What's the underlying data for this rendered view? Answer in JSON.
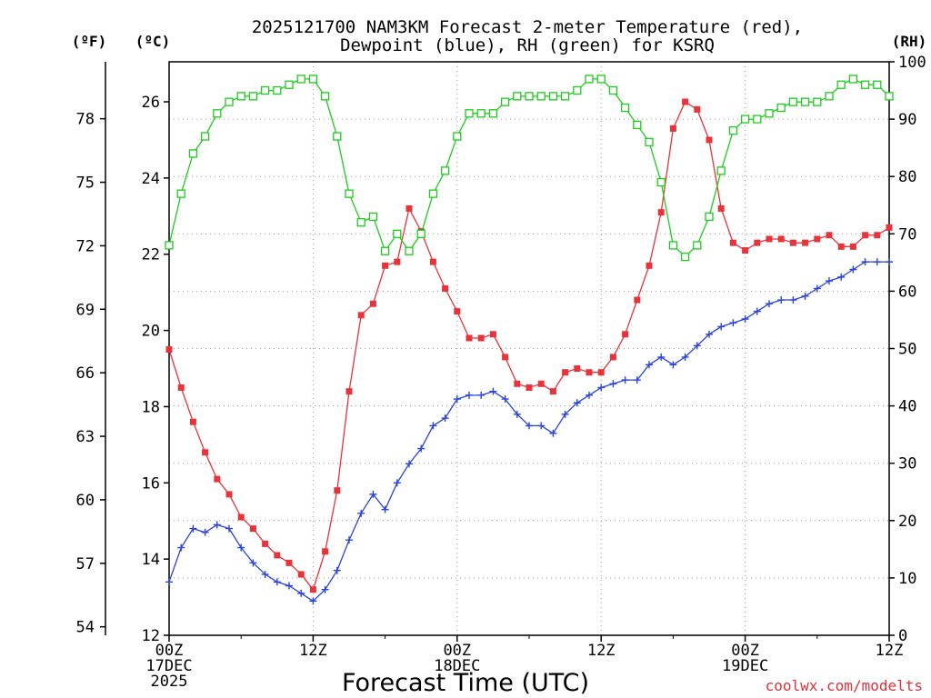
{
  "chart_data": {
    "type": "line",
    "title_line1": "2025121700 NAM3KM Forecast 2-meter Temperature (red),",
    "title_line2": "Dewpoint (blue), RH (green) for KSRQ",
    "xlabel": "Forecast Time (UTC)",
    "credit": "coolwx.com/modelts",
    "units": {
      "fahrenheit": "(ºF)",
      "celsius": "(ºC)",
      "rh": "(RH)"
    },
    "x_unit": "forecast hour",
    "xlim": [
      0,
      60
    ],
    "x_ticks": [
      {
        "hour": 0,
        "l1": "00Z",
        "l2": "17DEC",
        "l3": "2025"
      },
      {
        "hour": 12,
        "l1": "12Z",
        "l2": "",
        "l3": ""
      },
      {
        "hour": 24,
        "l1": "00Z",
        "l2": "18DEC",
        "l3": ""
      },
      {
        "hour": 36,
        "l1": "12Z",
        "l2": "",
        "l3": ""
      },
      {
        "hour": 48,
        "l1": "00Z",
        "l2": "19DEC",
        "l3": ""
      },
      {
        "hour": 60,
        "l1": "12Z",
        "l2": "",
        "l3": ""
      }
    ],
    "celsius_axis": {
      "ylim": [
        12,
        27.05
      ],
      "ticks": [
        12,
        14,
        16,
        18,
        20,
        22,
        24,
        26
      ]
    },
    "fahrenheit_axis": {
      "ticks": [
        54,
        57,
        60,
        63,
        66,
        69,
        72,
        75,
        78
      ]
    },
    "rh_axis": {
      "ylim": [
        0,
        100
      ],
      "ticks": [
        0,
        10,
        20,
        30,
        40,
        50,
        60,
        70,
        80,
        90,
        100
      ]
    },
    "series": [
      {
        "name": "2-meter Temperature",
        "axis": "celsius",
        "color": "#e8333a",
        "marker": "filled-square",
        "x": [
          0,
          1,
          2,
          3,
          4,
          5,
          6,
          7,
          8,
          9,
          10,
          11,
          12,
          13,
          14,
          15,
          16,
          17,
          18,
          19,
          20,
          21,
          22,
          23,
          24,
          25,
          26,
          27,
          28,
          29,
          30,
          31,
          32,
          33,
          34,
          35,
          36,
          37,
          38,
          39,
          40,
          41,
          42,
          43,
          44,
          45,
          46,
          47,
          48,
          49,
          50,
          51,
          52,
          53,
          54,
          55,
          56,
          57,
          58,
          59,
          60
        ],
        "values": [
          19.5,
          18.5,
          17.6,
          16.8,
          16.1,
          15.7,
          15.1,
          14.8,
          14.4,
          14.1,
          13.9,
          13.6,
          13.2,
          14.2,
          15.8,
          18.4,
          20.4,
          20.7,
          21.7,
          21.8,
          23.2,
          22.6,
          21.8,
          21.1,
          20.5,
          19.8,
          19.8,
          19.9,
          19.3,
          18.6,
          18.5,
          18.6,
          18.4,
          18.9,
          19.0,
          18.9,
          18.9,
          19.3,
          19.9,
          20.8,
          21.7,
          23.1,
          25.3,
          26.0,
          25.8,
          25.0,
          23.2,
          22.3,
          22.1,
          22.3,
          22.4,
          22.4,
          22.3,
          22.3,
          22.4,
          22.5,
          22.2,
          22.2,
          22.5,
          22.5,
          22.7
        ]
      },
      {
        "name": "Dewpoint",
        "axis": "celsius",
        "color": "#2b44e0",
        "marker": "plus",
        "x": [
          0,
          1,
          2,
          3,
          4,
          5,
          6,
          7,
          8,
          9,
          10,
          11,
          12,
          13,
          14,
          15,
          16,
          17,
          18,
          19,
          20,
          21,
          22,
          23,
          24,
          25,
          26,
          27,
          28,
          29,
          30,
          31,
          32,
          33,
          34,
          35,
          36,
          37,
          38,
          39,
          40,
          41,
          42,
          43,
          44,
          45,
          46,
          47,
          48,
          49,
          50,
          51,
          52,
          53,
          54,
          55,
          56,
          57,
          58,
          59,
          60
        ],
        "values": [
          13.4,
          14.3,
          14.8,
          14.7,
          14.9,
          14.8,
          14.3,
          13.9,
          13.6,
          13.4,
          13.3,
          13.1,
          12.9,
          13.2,
          13.7,
          14.5,
          15.2,
          15.7,
          15.3,
          16.0,
          16.5,
          16.9,
          17.5,
          17.7,
          18.2,
          18.3,
          18.3,
          18.4,
          18.2,
          17.8,
          17.5,
          17.5,
          17.3,
          17.8,
          18.1,
          18.3,
          18.5,
          18.6,
          18.7,
          18.7,
          19.1,
          19.3,
          19.1,
          19.3,
          19.6,
          19.9,
          20.1,
          20.2,
          20.3,
          20.5,
          20.7,
          20.8,
          20.8,
          20.9,
          21.1,
          21.3,
          21.4,
          21.6,
          21.8,
          21.8,
          21.8
        ]
      },
      {
        "name": "RH",
        "axis": "rh",
        "color": "#1ecb1e",
        "marker": "open-square",
        "x": [
          0,
          1,
          2,
          3,
          4,
          5,
          6,
          7,
          8,
          9,
          10,
          11,
          12,
          13,
          14,
          15,
          16,
          17,
          18,
          19,
          20,
          21,
          22,
          23,
          24,
          25,
          26,
          27,
          28,
          29,
          30,
          31,
          32,
          33,
          34,
          35,
          36,
          37,
          38,
          39,
          40,
          41,
          42,
          43,
          44,
          45,
          46,
          47,
          48,
          49,
          50,
          51,
          52,
          53,
          54,
          55,
          56,
          57,
          58,
          59,
          60
        ],
        "values": [
          68,
          77,
          84,
          87,
          91,
          93,
          94,
          94,
          95,
          95,
          96,
          97,
          97,
          94,
          87,
          77,
          72,
          73,
          67,
          70,
          67,
          70,
          77,
          81,
          87,
          91,
          91,
          91,
          93,
          94,
          94,
          94,
          94,
          94,
          95,
          97,
          97,
          95,
          92,
          89,
          86,
          79,
          68,
          66,
          68,
          73,
          81,
          88,
          90,
          90,
          91,
          92,
          93,
          93,
          93,
          94,
          96,
          97,
          96,
          96,
          94
        ]
      }
    ]
  }
}
